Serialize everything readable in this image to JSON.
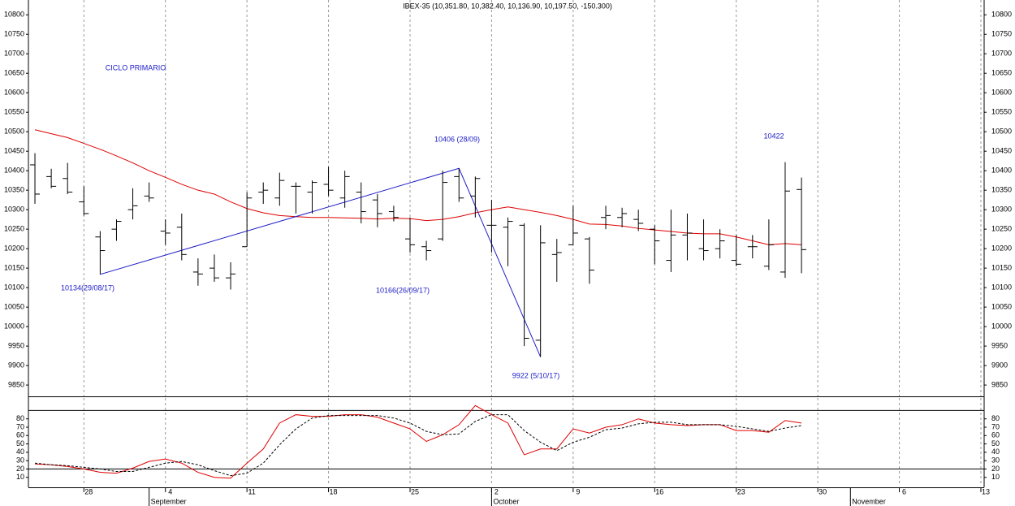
{
  "chart_data": [
    {
      "type": "ohlc",
      "title": "IBEX-35 (10,351.80, 10,382.40, 10,136.90, 10,197.50, -150.300)",
      "color": "#000000",
      "x": [
        0,
        1,
        2,
        3,
        4,
        5,
        6,
        7,
        8,
        9,
        10,
        11,
        12,
        13,
        14,
        15,
        16,
        17,
        18,
        19,
        20,
        21,
        22,
        23,
        24,
        25,
        26,
        27,
        28,
        29,
        30,
        31,
        32,
        33,
        34,
        35,
        36,
        37,
        38,
        39,
        40,
        41,
        42,
        43,
        44,
        45,
        46,
        47
      ],
      "open": [
        10415,
        10385,
        10380,
        10320,
        10230,
        10250,
        10300,
        10335,
        10245,
        10255,
        10140,
        10150,
        10125,
        10205,
        10345,
        10330,
        10360,
        10345,
        10365,
        10330,
        10345,
        10325,
        10295,
        10225,
        10205,
        10225,
        10385,
        10335,
        10260,
        10255,
        10260,
        9965,
        10185,
        10210,
        10225,
        10280,
        10280,
        10275,
        10250,
        10170,
        10235,
        10200,
        10200,
        10170,
        10205,
        10155,
        10140,
        10351.8
      ],
      "high": [
        10445,
        10405,
        10420,
        10360,
        10245,
        10275,
        10355,
        10370,
        10275,
        10290,
        10175,
        10185,
        10165,
        10345,
        10370,
        10395,
        10370,
        10375,
        10410,
        10400,
        10370,
        10340,
        10310,
        10280,
        10220,
        10400,
        10406,
        10385,
        10325,
        10280,
        10265,
        10260,
        10225,
        10310,
        10230,
        10310,
        10305,
        10300,
        10260,
        10300,
        10290,
        10275,
        10250,
        10235,
        10235,
        10275,
        10422,
        10382.4
      ],
      "low": [
        10315,
        10355,
        10340,
        10285,
        10134,
        10220,
        10275,
        10320,
        10210,
        10170,
        10105,
        10115,
        10095,
        10205,
        10315,
        10310,
        10290,
        10290,
        10335,
        10305,
        10265,
        10255,
        10270,
        10190,
        10170,
        10220,
        10320,
        10280,
        10190,
        10155,
        9950,
        9922,
        10115,
        10210,
        10110,
        10250,
        10255,
        10245,
        10160,
        10140,
        10170,
        10170,
        10175,
        10155,
        10175,
        10145,
        10125,
        10136.9
      ],
      "close": [
        10340,
        10360,
        10345,
        10290,
        10195,
        10270,
        10310,
        10330,
        10240,
        10185,
        10135,
        10125,
        10135,
        10330,
        10350,
        10375,
        10360,
        10370,
        10350,
        10385,
        10295,
        10290,
        10280,
        10210,
        10195,
        10370,
        10330,
        10380,
        10260,
        10270,
        9970,
        10215,
        10190,
        10240,
        10145,
        10285,
        10290,
        10265,
        10220,
        10235,
        10240,
        10195,
        10220,
        10160,
        10205,
        10210,
        10347.8,
        10197.5
      ],
      "ylim": [
        9821,
        10838
      ],
      "yticks": [
        9850,
        9900,
        9950,
        10000,
        10050,
        10100,
        10150,
        10200,
        10250,
        10300,
        10350,
        10400,
        10450,
        10500,
        10550,
        10600,
        10650,
        10700,
        10750,
        10800
      ],
      "grid": true,
      "overlays": [
        {
          "type": "line",
          "color": "#e00000",
          "values": [
            10505,
            10495,
            10485,
            10470,
            10455,
            10438,
            10420,
            10400,
            10383,
            10365,
            10350,
            10340,
            10320,
            10303,
            10292,
            10285,
            10282,
            10280,
            10280,
            10279,
            10278,
            10276,
            10278,
            10277,
            10272,
            10275,
            10282,
            10292,
            10300,
            10307,
            10300,
            10293,
            10285,
            10275,
            10263,
            10262,
            10258,
            10252,
            10248,
            10244,
            10240,
            10238,
            10238,
            10230,
            10220,
            10210,
            10213,
            10210
          ]
        },
        {
          "type": "line",
          "color": "#2020c8",
          "x": [
            4,
            26,
            31
          ],
          "values": [
            10134,
            10406,
            9922
          ]
        }
      ],
      "annotations": [
        "CICLO PRIMARIO",
        "10134(29/08/17)",
        "10406 (28/09)",
        "10166(26/09/17)",
        "9922 (5/10/17)",
        "10422"
      ]
    },
    {
      "type": "line",
      "series": [
        {
          "color": "#e00000",
          "values": [
            26,
            25,
            23,
            20,
            16,
            15,
            21,
            29,
            32,
            27,
            16,
            10,
            9,
            27,
            44,
            75,
            85,
            83,
            83,
            85,
            85,
            82,
            75,
            68,
            53,
            61,
            73,
            96,
            85,
            75,
            37,
            44,
            44,
            68,
            63,
            70,
            73,
            80,
            75,
            73,
            72,
            73,
            73,
            66,
            66,
            64,
            78,
            75
          ]
        },
        {
          "color": "#000000",
          "dashed": true,
          "values": [
            27,
            25,
            24,
            22,
            20,
            17,
            17,
            22,
            27,
            29,
            25,
            18,
            12,
            15,
            27,
            49,
            68,
            81,
            84,
            84,
            84,
            84,
            81,
            75,
            65,
            61,
            62,
            77,
            85,
            85,
            66,
            52,
            42,
            52,
            58,
            67,
            69,
            74,
            76,
            76,
            73,
            73,
            73,
            71,
            68,
            65,
            69,
            72
          ]
        }
      ],
      "ylim": [
        0,
        105
      ],
      "yticks": [
        10,
        20,
        30,
        40,
        50,
        60,
        70,
        80
      ],
      "levels": [
        20,
        90
      ],
      "xlim": [
        -0.4,
        58.2
      ],
      "xticks": [
        {
          "value": 3,
          "label": "28"
        },
        {
          "value": 8,
          "label": "4"
        },
        {
          "value": 13,
          "label": "11"
        },
        {
          "value": 18,
          "label": "18"
        },
        {
          "value": 23,
          "label": "25"
        },
        {
          "value": 28,
          "label": "2"
        },
        {
          "value": 33,
          "label": "9"
        },
        {
          "value": 38,
          "label": "16"
        },
        {
          "value": 43,
          "label": "23"
        },
        {
          "value": 48,
          "label": "30"
        },
        {
          "value": 53,
          "label": "6"
        },
        {
          "value": 58,
          "label": "13"
        }
      ],
      "months": [
        {
          "value": 7,
          "label": "September"
        },
        {
          "value": 28,
          "label": "October"
        },
        {
          "value": 50,
          "label": "November"
        }
      ]
    }
  ]
}
